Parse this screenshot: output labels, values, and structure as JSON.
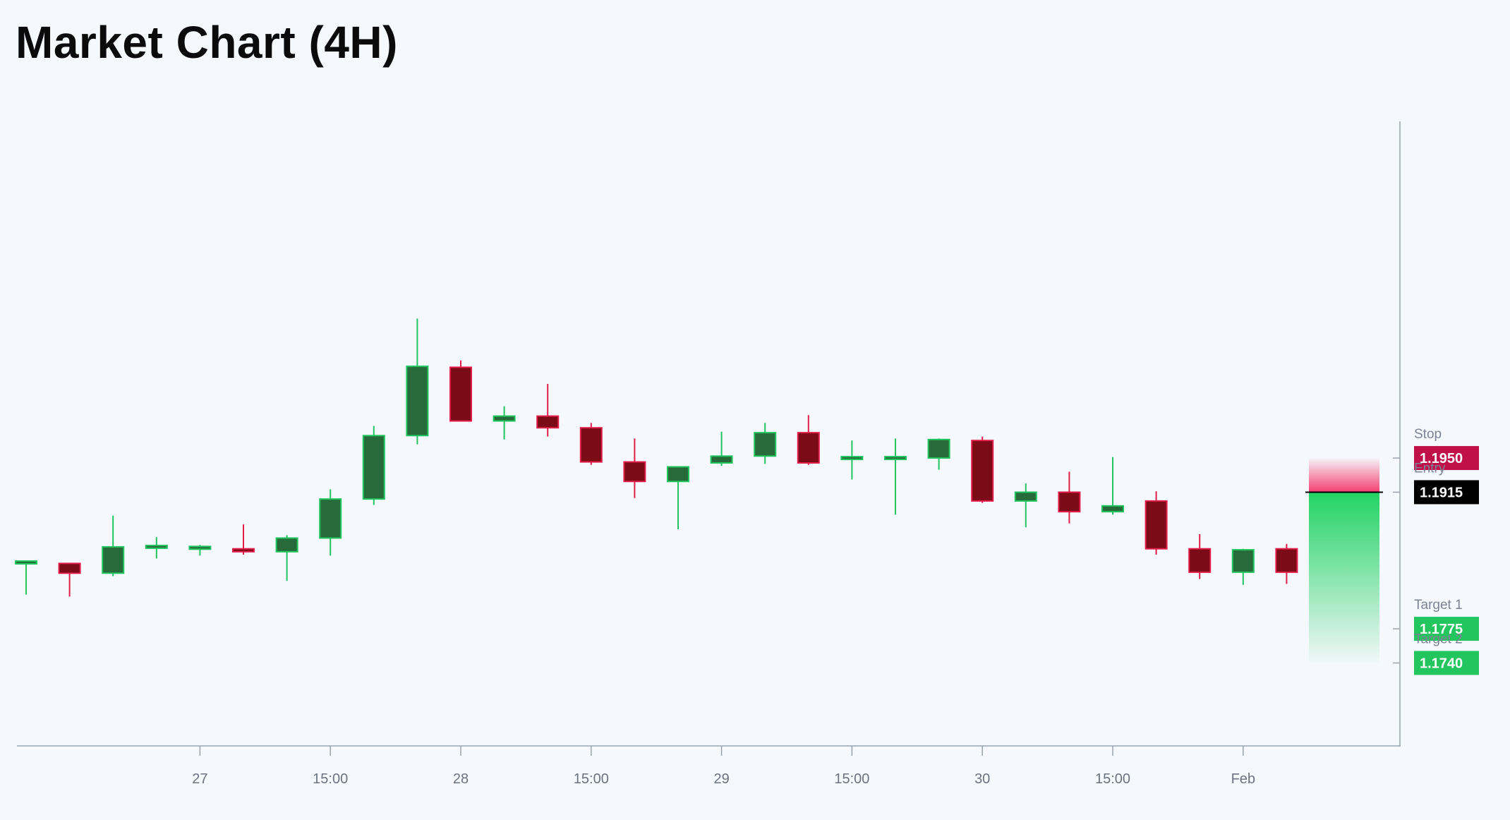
{
  "title": "Market Chart (4H)",
  "colors": {
    "background": "#f5f8fc",
    "up_body": "#276b3a",
    "up_border": "#22c55e",
    "down_body": "#7a0b17",
    "down_border": "#e11d48",
    "stop": "#c0104a",
    "entry": "#000000",
    "target": "#22c55e",
    "axis": "#9aa3ad"
  },
  "chart_data": {
    "type": "candlestick",
    "title": "Market Chart (4H)",
    "timeframe": "4H",
    "xlabel": "",
    "ylabel": "",
    "ylim": [
      1.1655,
      1.2295
    ],
    "y_axis_side": "right",
    "y_tick_labels_shown": false,
    "grid": false,
    "x_ticks": [
      {
        "label": "27",
        "index": 4
      },
      {
        "label": "15:00",
        "index": 7
      },
      {
        "label": "28",
        "index": 10
      },
      {
        "label": "15:00",
        "index": 13
      },
      {
        "label": "29",
        "index": 16
      },
      {
        "label": "15:00",
        "index": 19
      },
      {
        "label": "30",
        "index": 22
      },
      {
        "label": "15:00",
        "index": 25
      },
      {
        "label": "Feb",
        "index": 28
      }
    ],
    "candles": [
      {
        "o": 1.1843,
        "h": 1.1845,
        "l": 1.181,
        "c": 1.1843
      },
      {
        "o": 1.1842,
        "h": 1.1842,
        "l": 1.1808,
        "c": 1.1832
      },
      {
        "o": 1.1832,
        "h": 1.1891,
        "l": 1.1829,
        "c": 1.1859
      },
      {
        "o": 1.1858,
        "h": 1.1869,
        "l": 1.1847,
        "c": 1.186
      },
      {
        "o": 1.1857,
        "h": 1.1861,
        "l": 1.185,
        "c": 1.1859
      },
      {
        "o": 1.1857,
        "h": 1.1882,
        "l": 1.1851,
        "c": 1.1854
      },
      {
        "o": 1.1854,
        "h": 1.1871,
        "l": 1.1824,
        "c": 1.1868
      },
      {
        "o": 1.1868,
        "h": 1.1918,
        "l": 1.185,
        "c": 1.1908
      },
      {
        "o": 1.1908,
        "h": 1.1983,
        "l": 1.1902,
        "c": 1.1973
      },
      {
        "o": 1.1973,
        "h": 1.2093,
        "l": 1.1964,
        "c": 1.2044
      },
      {
        "o": 1.2043,
        "h": 1.205,
        "l": 1.1988,
        "c": 1.1988
      },
      {
        "o": 1.1988,
        "h": 1.2003,
        "l": 1.1969,
        "c": 1.1993
      },
      {
        "o": 1.1993,
        "h": 1.2026,
        "l": 1.1972,
        "c": 1.1981
      },
      {
        "o": 1.1981,
        "h": 1.1986,
        "l": 1.1943,
        "c": 1.1946
      },
      {
        "o": 1.1946,
        "h": 1.197,
        "l": 1.1909,
        "c": 1.1926
      },
      {
        "o": 1.1926,
        "h": 1.1941,
        "l": 1.1877,
        "c": 1.1941
      },
      {
        "o": 1.1945,
        "h": 1.1977,
        "l": 1.1942,
        "c": 1.1952
      },
      {
        "o": 1.1952,
        "h": 1.1986,
        "l": 1.1944,
        "c": 1.1976
      },
      {
        "o": 1.1976,
        "h": 1.1994,
        "l": 1.1943,
        "c": 1.1945
      },
      {
        "o": 1.195,
        "h": 1.1968,
        "l": 1.1928,
        "c": 1.195
      },
      {
        "o": 1.195,
        "h": 1.197,
        "l": 1.1892,
        "c": 1.195
      },
      {
        "o": 1.195,
        "h": 1.197,
        "l": 1.1938,
        "c": 1.1969
      },
      {
        "o": 1.1968,
        "h": 1.1972,
        "l": 1.1904,
        "c": 1.1906
      },
      {
        "o": 1.1906,
        "h": 1.1924,
        "l": 1.1879,
        "c": 1.1915
      },
      {
        "o": 1.1915,
        "h": 1.1936,
        "l": 1.1883,
        "c": 1.1895
      },
      {
        "o": 1.1895,
        "h": 1.1951,
        "l": 1.1892,
        "c": 1.1901
      },
      {
        "o": 1.1906,
        "h": 1.1916,
        "l": 1.1851,
        "c": 1.1857
      },
      {
        "o": 1.1857,
        "h": 1.1872,
        "l": 1.1826,
        "c": 1.1833
      },
      {
        "o": 1.1833,
        "h": 1.1857,
        "l": 1.182,
        "c": 1.1856
      },
      {
        "o": 1.1857,
        "h": 1.1862,
        "l": 1.1821,
        "c": 1.1833
      }
    ],
    "levels": [
      {
        "name": "Stop",
        "value": 1.195,
        "label": "1.1950",
        "color": "#c0104a"
      },
      {
        "name": "Entry",
        "value": 1.1915,
        "label": "1.1915",
        "color": "#000000"
      },
      {
        "name": "Target 1",
        "value": 1.1775,
        "label": "1.1775",
        "color": "#22c55e"
      },
      {
        "name": "Target 2",
        "value": 1.174,
        "label": "1.1740",
        "color": "#22c55e"
      }
    ],
    "trade_zone": {
      "entry": 1.1915,
      "stop": 1.195,
      "target": 1.174
    }
  }
}
